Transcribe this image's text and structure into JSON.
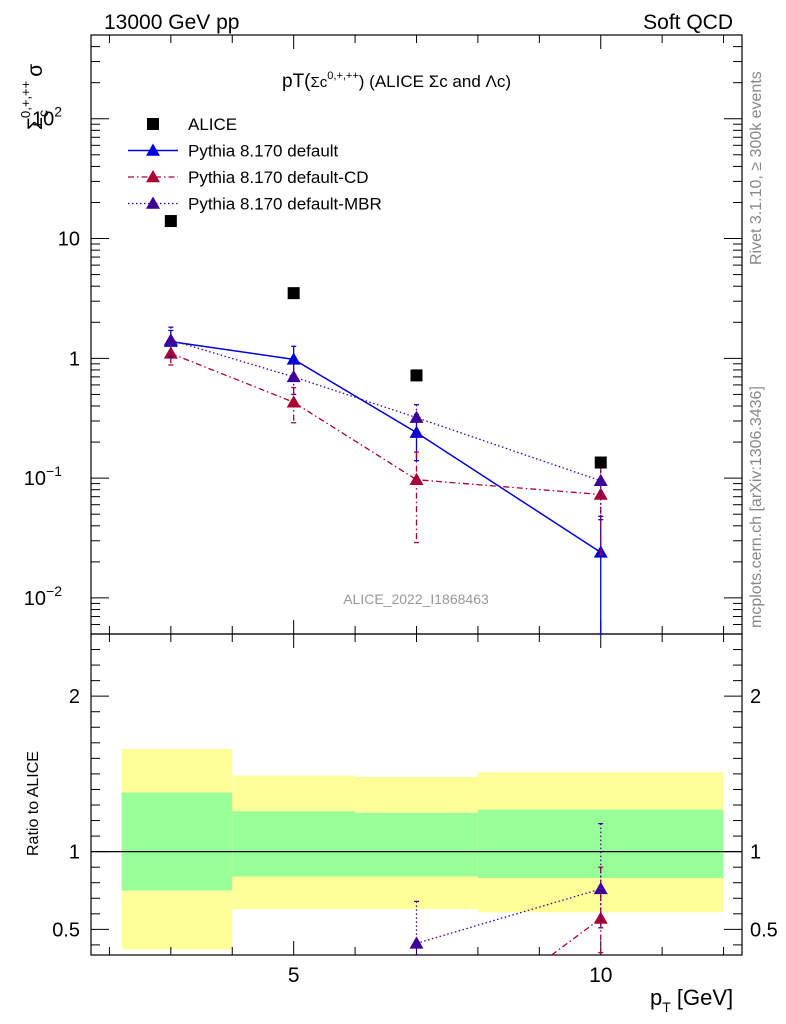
{
  "header": {
    "left": "13000 GeV pp",
    "right": "Soft QCD"
  },
  "side_text": {
    "rivet": "Rivet 3.1.10, ≥ 300k events",
    "mcplots": "mcplots.cern.ch [arXiv:1306.3436]"
  },
  "watermark": "ALICE_2022_I1868463",
  "colors": {
    "alice": "#000000",
    "default": "#0000dd",
    "cd": "#aa0033",
    "mbr": "#3d0099",
    "band_inner": "#99ff99",
    "band_outer": "#ffff99"
  },
  "chart_data": [
    {
      "type": "scatter",
      "panel": "main",
      "title": "pT(Σc⁰⁺⁺⁺) (ALICE Σc and Λc)",
      "title_parts": {
        "prefix": "pT(",
        "sym": "Σc",
        "sup": "0,+,++",
        "suffix": ") (ALICE Σc and Λc)"
      },
      "ylabel": {
        "base": "Σ",
        "sub": "c",
        "sup": "0,+,++",
        "tail": "σ"
      },
      "xlabel": {
        "base": "p",
        "sub": "T",
        "tail": " [GeV]"
      },
      "yscale": "log",
      "xlim": [
        1.7,
        12.3
      ],
      "ylim": [
        0.005,
        500
      ],
      "yticks": [
        {
          "v": 0.01,
          "base": "10",
          "sup": "−2"
        },
        {
          "v": 0.1,
          "base": "10",
          "sup": "−1"
        },
        {
          "v": 1,
          "base": "1",
          "sup": ""
        },
        {
          "v": 10,
          "base": "10",
          "sup": ""
        },
        {
          "v": 100,
          "base": "10",
          "sup": "2"
        }
      ],
      "legend_position": "top-left",
      "series": [
        {
          "name": "ALICE",
          "style": "data",
          "x": [
            3,
            5,
            7,
            10
          ],
          "y": [
            14,
            3.5,
            0.72,
            0.135
          ],
          "err_lo": [
            0.1,
            0.1,
            0.02,
            0.01
          ],
          "err_hi": [
            0.1,
            0.1,
            0.02,
            0.01
          ]
        },
        {
          "name": "Pythia 8.170 default",
          "style": "solid",
          "x": [
            3,
            5,
            7,
            10
          ],
          "y": [
            1.38,
            0.98,
            0.24,
            0.024
          ],
          "err_lo": [
            0.33,
            0.28,
            0.1,
            0.024
          ],
          "err_hi": [
            0.33,
            0.28,
            0.1,
            0.024
          ]
        },
        {
          "name": "Pythia 8.170 default-CD",
          "style": "dashdot",
          "x": [
            3,
            5,
            7,
            10
          ],
          "y": [
            1.1,
            0.43,
            0.097,
            0.073
          ],
          "err_lo": [
            0.22,
            0.14,
            0.068,
            0.05
          ],
          "err_hi": [
            0.22,
            0.14,
            0.068,
            0.05
          ]
        },
        {
          "name": "Pythia 8.170 default-MBR",
          "style": "dotted",
          "x": [
            3,
            5,
            7,
            10
          ],
          "y": [
            1.42,
            0.7,
            0.32,
            0.095
          ],
          "err_lo": [
            0.4,
            0.2,
            0.09,
            0.05
          ],
          "err_hi": [
            0.4,
            0.2,
            0.09,
            0.05
          ]
        }
      ]
    },
    {
      "type": "scatter",
      "panel": "ratio",
      "ylabel": "Ratio to ALICE",
      "xlim": [
        1.7,
        12.3
      ],
      "ylim": [
        0.335,
        2.4
      ],
      "yticks": [
        0.5,
        1,
        2
      ],
      "xticks": [
        5,
        10
      ],
      "reference_line": 1,
      "bands": [
        {
          "x0": 2.2,
          "x1": 4.0,
          "inner": [
            0.75,
            1.38
          ],
          "outer": [
            0.37,
            1.66
          ]
        },
        {
          "x0": 4.0,
          "x1": 6.0,
          "inner": [
            0.84,
            1.26
          ],
          "outer": [
            0.63,
            1.49
          ]
        },
        {
          "x0": 6.0,
          "x1": 8.0,
          "inner": [
            0.84,
            1.25
          ],
          "outer": [
            0.63,
            1.48
          ]
        },
        {
          "x0": 8.0,
          "x1": 12.0,
          "inner": [
            0.83,
            1.27
          ],
          "outer": [
            0.61,
            1.51
          ]
        }
      ],
      "series": [
        {
          "name": "Pythia 8.170 default-CD",
          "style": "dashdot",
          "x": [
            9.2,
            10
          ],
          "y": [
            0.33,
            0.57
          ],
          "err_lo": [
            0.0,
            0.22
          ],
          "err_hi": [
            0.0,
            0.33
          ],
          "marker": [
            false,
            true
          ]
        },
        {
          "name": "Pythia 8.170 default-MBR",
          "style": "dotted",
          "x": [
            7,
            10
          ],
          "y": [
            0.41,
            0.76
          ],
          "err_lo": [
            0.08,
            0.25
          ],
          "err_hi": [
            0.27,
            0.42
          ],
          "marker": [
            true,
            true
          ]
        }
      ]
    }
  ]
}
